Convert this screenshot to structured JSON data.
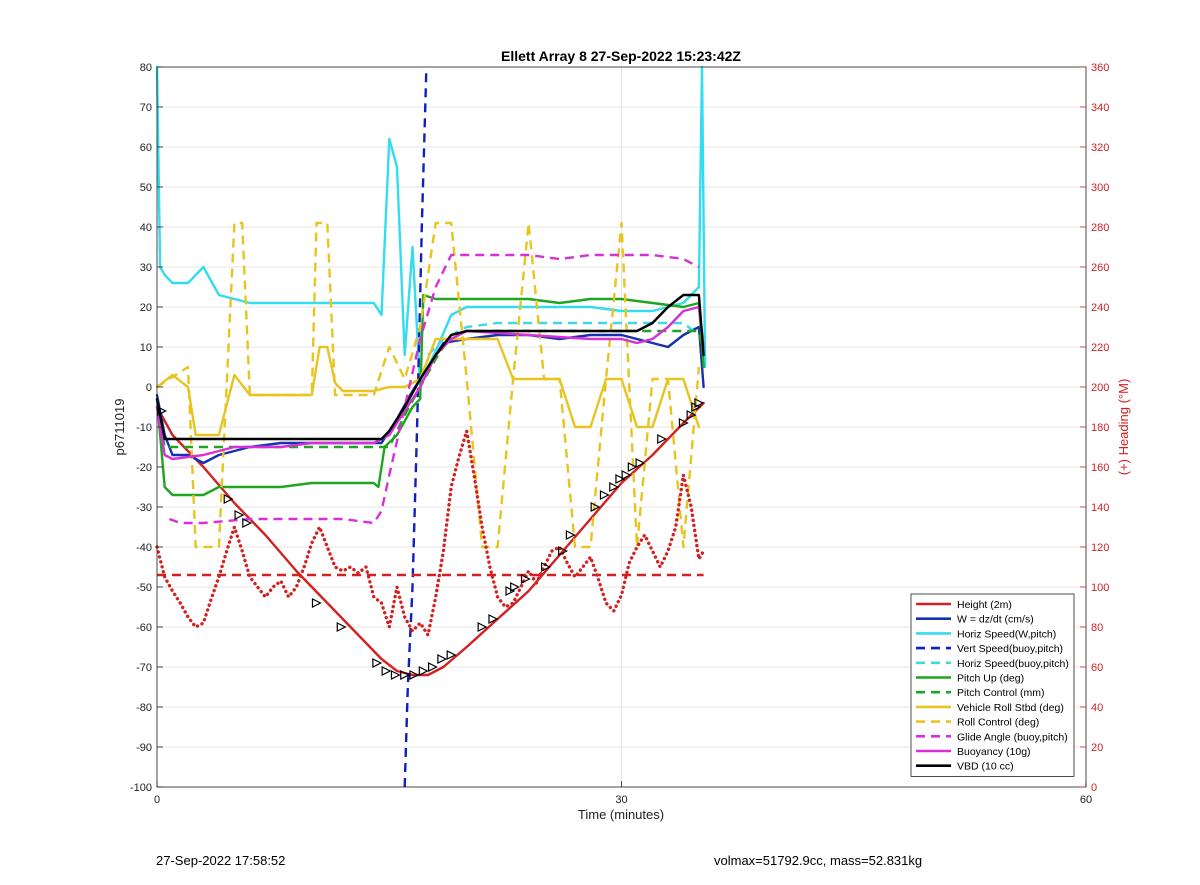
{
  "chart_data": {
    "type": "line",
    "title": "Ellett Array 8 27-Sep-2022 15:23:42Z",
    "xlabel": "Time (minutes)",
    "ylabel": "p6711019",
    "ylabel_right": "(+) Heading (°M)",
    "xlim": [
      0,
      60
    ],
    "ylim": [
      -100,
      80
    ],
    "ylim_right": [
      0,
      360
    ],
    "xticks": [
      0,
      30,
      60
    ],
    "yticks": [
      -100,
      -90,
      -80,
      -70,
      -60,
      -50,
      -40,
      -30,
      -20,
      -10,
      0,
      10,
      20,
      30,
      40,
      50,
      60,
      70,
      80
    ],
    "yticks_right": [
      0,
      20,
      40,
      60,
      80,
      100,
      120,
      140,
      160,
      180,
      200,
      220,
      240,
      260,
      280,
      300,
      320,
      340,
      360
    ],
    "grid": true,
    "legend_position": "bottom-right",
    "series": [
      {
        "name": "Height (2m)",
        "color": "#d42020",
        "style": "solid",
        "axis": "left",
        "x": [
          0,
          1,
          3,
          5,
          7,
          9,
          11,
          13,
          14.5,
          15.5,
          16.5,
          17.5,
          18.5,
          20,
          22,
          24,
          26,
          28,
          30,
          32,
          34,
          35.3
        ],
        "y": [
          -5,
          -12,
          -20,
          -29,
          -37,
          -46,
          -54,
          -62,
          -68,
          -71,
          -72,
          -72,
          -70,
          -65,
          -58,
          -51,
          -42,
          -33,
          -24,
          -17,
          -9,
          -4
        ]
      },
      {
        "name": "W = dz/dt (cm/s)",
        "color": "#1530b0",
        "style": "solid",
        "axis": "left",
        "x": [
          0,
          0.5,
          1,
          2,
          3,
          4,
          6,
          8,
          10,
          12,
          14,
          14.5,
          15.5,
          16.5,
          17.5,
          18.5,
          20,
          22,
          24,
          26,
          28,
          30,
          32,
          33,
          34,
          35,
          35.3
        ],
        "y": [
          -2,
          -12,
          -17,
          -17,
          -19,
          -17,
          -15,
          -14,
          -14,
          -14,
          -14,
          -14,
          -8,
          -1,
          5,
          11,
          12,
          13,
          13,
          12,
          13,
          13,
          11,
          10,
          13,
          15,
          0
        ]
      },
      {
        "name": "Horiz Speed(W,pitch)",
        "color": "#34dcf0",
        "style": "solid",
        "axis": "left",
        "x": [
          0,
          0.2,
          0.5,
          1,
          2,
          3,
          4,
          6,
          8,
          10,
          12,
          14,
          14.5,
          15,
          15.5,
          16,
          16.5,
          17,
          17.5,
          18,
          19,
          20,
          22,
          24,
          26,
          28,
          30,
          32,
          34,
          35,
          35.2,
          35.4
        ],
        "y": [
          80,
          30,
          28,
          26,
          26,
          30,
          23,
          21,
          21,
          21,
          21,
          21,
          18,
          62,
          55,
          8,
          35,
          0,
          5,
          9,
          18,
          20,
          20,
          20,
          20,
          20,
          19,
          19,
          21,
          25,
          80,
          5
        ]
      },
      {
        "name": "Vert Speed(buoy,pitch)",
        "color": "#1020c0",
        "style": "dashed",
        "axis": "left",
        "x": [
          16,
          16.2,
          16.5,
          16.8,
          17.1,
          17.4
        ],
        "y": [
          -100,
          -75,
          -50,
          -10,
          40,
          80
        ]
      },
      {
        "name": "Horiz Speed(buoy,pitch)",
        "color": "#40d8e8",
        "style": "dashed",
        "axis": "left",
        "x": [
          17.5,
          18.5,
          20,
          22,
          24,
          26,
          28,
          30,
          32,
          34,
          35.3
        ],
        "y": [
          8,
          12,
          15,
          16,
          16,
          16,
          16,
          16,
          16,
          16,
          12
        ]
      },
      {
        "name": "Pitch Up (deg)",
        "color": "#1fa51f",
        "style": "solid",
        "axis": "left",
        "x": [
          0,
          0.5,
          1,
          2,
          3,
          4,
          6,
          8,
          10,
          12,
          14,
          14.3,
          14.7,
          15.5,
          16.5,
          17,
          17.2,
          18,
          20,
          22,
          24,
          26,
          28,
          30,
          32,
          34,
          35,
          35.3
        ],
        "y": [
          -3,
          -25,
          -27,
          -27,
          -27,
          -25,
          -25,
          -25,
          -24,
          -24,
          -24,
          -25,
          -15,
          -12,
          -5,
          -3,
          23,
          22,
          22,
          22,
          22,
          21,
          22,
          22,
          21,
          20,
          21,
          5
        ]
      },
      {
        "name": "Pitch Control (mm)",
        "color": "#1fa51f",
        "style": "dashed",
        "axis": "left",
        "x": [
          0,
          0.5,
          14,
          15,
          16,
          17,
          18,
          19,
          20,
          30,
          35,
          35.3
        ],
        "y": [
          -5,
          -15,
          -15,
          -15,
          -7,
          0,
          7,
          13,
          14,
          14,
          14,
          8
        ]
      },
      {
        "name": "Vehicle Roll Stbd (deg)",
        "color": "#e8c420",
        "style": "solid",
        "axis": "left",
        "x": [
          0,
          1,
          2,
          2.5,
          3,
          4,
          5,
          6,
          8,
          10,
          10.5,
          11,
          11.5,
          12,
          14,
          15,
          16,
          17,
          18,
          19,
          20,
          22,
          23,
          24,
          25,
          26,
          27,
          28,
          29,
          30,
          31,
          32,
          33,
          34,
          35
        ],
        "y": [
          0,
          3,
          0,
          -12,
          -12,
          -12,
          3,
          -2,
          -2,
          -2,
          10,
          10,
          1,
          -1,
          -1,
          0,
          0,
          2,
          12,
          12,
          12,
          12,
          2,
          2,
          2,
          2,
          -10,
          -10,
          2,
          2,
          -10,
          -10,
          2,
          2,
          -10
        ]
      },
      {
        "name": "Roll Control (deg)",
        "color": "#e8c420",
        "style": "dashed",
        "axis": "left",
        "x": [
          0,
          2,
          2.5,
          3,
          4,
          5,
          5.5,
          6,
          8,
          10,
          10.3,
          11,
          11.5,
          12,
          14,
          15,
          16,
          17,
          18,
          19,
          20,
          21,
          22,
          23,
          24,
          25,
          26,
          27,
          28,
          29,
          30,
          31,
          32,
          33,
          34,
          35
        ],
        "y": [
          0,
          5,
          -40,
          -40,
          -40,
          41,
          41,
          -2,
          -2,
          -2,
          41,
          41,
          -2,
          -2,
          -2,
          10,
          2,
          15,
          41,
          41,
          2,
          -40,
          -40,
          2,
          41,
          2,
          2,
          -40,
          -40,
          2,
          41,
          -40,
          2,
          2,
          -40,
          5
        ]
      },
      {
        "name": "Glide Angle (buoy,pitch)",
        "color": "#d830d8",
        "style": "dashed",
        "axis": "left",
        "x": [
          0.8,
          1.5,
          3,
          6,
          9,
          12,
          14,
          14.5,
          15,
          16,
          17,
          18,
          19,
          20,
          22,
          24,
          26,
          28,
          30,
          32,
          34,
          35
        ],
        "y": [
          -33,
          -34,
          -34,
          -33,
          -33,
          -33,
          -34,
          -31,
          -22,
          -5,
          12,
          25,
          33,
          33,
          33,
          33,
          32,
          33,
          33,
          33,
          32,
          30
        ]
      },
      {
        "name": "Buoyancy (10g)",
        "color": "#d830d8",
        "style": "solid",
        "axis": "left",
        "x": [
          0,
          0.5,
          1,
          3,
          5,
          8,
          10,
          12,
          14,
          15,
          16,
          17,
          18,
          19,
          20,
          24,
          28,
          30,
          31,
          32,
          33,
          34,
          35,
          35.3
        ],
        "y": [
          -5,
          -17,
          -18,
          -17,
          -15,
          -15,
          -14,
          -14,
          -14,
          -12,
          -6,
          0,
          8,
          12,
          14,
          13,
          12,
          12,
          11,
          12,
          15,
          19,
          20,
          10
        ]
      },
      {
        "name": "VBD (10 cc)",
        "color": "#000000",
        "style": "solid",
        "axis": "left",
        "x": [
          0,
          0.5,
          1,
          14,
          14.5,
          15,
          16,
          17,
          18,
          19,
          20,
          30,
          31,
          32,
          33,
          34,
          35,
          35.3
        ],
        "y": [
          -3,
          -13,
          -13,
          -13,
          -13,
          -11,
          -5,
          2,
          8,
          13,
          14,
          14,
          14,
          16,
          20,
          23,
          23,
          8
        ]
      },
      {
        "name": "",
        "color": "#d42020",
        "style": "dashed",
        "axis": "right",
        "x": [
          0,
          35.3
        ],
        "y": [
          106,
          106
        ]
      },
      {
        "name": "",
        "color": "#d42020",
        "style": "dotted",
        "axis": "right",
        "x": [
          0,
          0.5,
          1,
          1.5,
          2,
          2.5,
          3,
          3.5,
          4,
          4.5,
          5,
          5.5,
          6,
          6.5,
          7,
          7.5,
          8,
          8.5,
          9,
          9.5,
          10,
          10.5,
          11,
          11.5,
          12,
          12.5,
          13,
          13.5,
          14,
          14.5,
          15,
          15.5,
          16,
          16.5,
          17,
          17.5,
          18,
          18.5,
          19,
          19.5,
          20,
          20.5,
          21,
          21.5,
          22,
          22.5,
          23,
          23.5,
          24,
          24.5,
          25,
          25.5,
          26,
          26.5,
          27,
          27.5,
          28,
          28.5,
          29,
          29.5,
          30,
          30.5,
          31,
          31.5,
          32,
          32.5,
          33,
          33.5,
          34,
          34.5,
          35,
          35.3
        ],
        "y": [
          120,
          105,
          98,
          92,
          85,
          80,
          82,
          94,
          105,
          118,
          130,
          118,
          105,
          100,
          95,
          100,
          103,
          95,
          100,
          110,
          122,
          130,
          120,
          110,
          108,
          110,
          107,
          110,
          95,
          92,
          80,
          100,
          85,
          78,
          82,
          76,
          95,
          118,
          150,
          165,
          178,
          155,
          130,
          110,
          95,
          90,
          92,
          100,
          108,
          102,
          110,
          118,
          120,
          112,
          105,
          110,
          115,
          104,
          92,
          88,
          96,
          112,
          120,
          126,
          118,
          110,
          118,
          130,
          156,
          140,
          114,
          118
        ]
      }
    ],
    "markers": {
      "series": "Height (2m)",
      "symbol": "open-triangle",
      "color": "#000000",
      "x": [
        0.3,
        4.6,
        5.3,
        5.8,
        10.3,
        11.9,
        14.2,
        14.8,
        15.4,
        16.0,
        16.6,
        17.2,
        17.8,
        18.4,
        19.0,
        21.0,
        21.7,
        22.8,
        23.1,
        23.8,
        25.1,
        26.2,
        26.7,
        28.3,
        28.9,
        29.5,
        29.9,
        30.3,
        30.7,
        31.2,
        32.6,
        34.0,
        34.5,
        34.8,
        35.0
      ],
      "y": [
        -6,
        -28,
        -32,
        -34,
        -54,
        -60,
        -69,
        -71,
        -72,
        -72,
        -72,
        -71,
        -70,
        -68,
        -67,
        -60,
        -58,
        -51,
        -50,
        -48,
        -45,
        -41,
        -37,
        -30,
        -27,
        -25,
        -23,
        -22,
        -20,
        -19,
        -13,
        -9,
        -7,
        -5,
        -4
      ]
    }
  },
  "footer": {
    "datetime": "27-Sep-2022 17:58:52",
    "stats": "volmax=51792.9cc, mass=52.831kg"
  }
}
